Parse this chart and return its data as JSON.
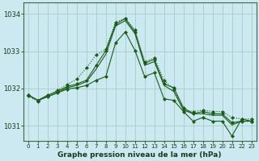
{
  "title": "Graphe pression niveau de la mer (hPa)",
  "bg_color": "#cce8f0",
  "grid_color": "#99ccbb",
  "line_color": "#1a5c1a",
  "xlim": [
    -0.5,
    23.5
  ],
  "ylim": [
    1030.6,
    1034.3
  ],
  "yticks": [
    1031,
    1032,
    1033,
    1034
  ],
  "xticks": [
    0,
    1,
    2,
    3,
    4,
    5,
    6,
    7,
    8,
    9,
    10,
    11,
    12,
    13,
    14,
    15,
    16,
    17,
    18,
    19,
    20,
    21,
    22,
    23
  ],
  "series": [
    {
      "x": [
        0,
        1,
        2,
        3,
        4,
        5,
        6,
        7,
        8,
        9,
        10,
        11,
        12,
        13,
        14,
        15,
        16,
        17,
        18,
        19,
        20,
        21,
        22,
        23
      ],
      "y": [
        1031.8,
        1031.65,
        1031.8,
        1031.95,
        1032.1,
        1032.25,
        1032.55,
        1032.9,
        1033.05,
        1033.78,
        1033.88,
        1033.58,
        1032.72,
        1032.82,
        1032.22,
        1031.98,
        1031.42,
        1031.38,
        1031.42,
        1031.38,
        1031.38,
        1031.22,
        1031.18,
        1031.18
      ],
      "linestyle": "dotted",
      "marker": true
    },
    {
      "x": [
        0,
        1,
        2,
        3,
        4,
        5,
        6,
        7,
        8,
        9,
        10,
        11,
        12,
        13,
        14,
        15,
        16,
        17,
        18,
        19,
        20,
        21,
        22,
        23
      ],
      "y": [
        1031.82,
        1031.68,
        1031.82,
        1031.92,
        1032.05,
        1032.12,
        1032.22,
        1032.62,
        1033.02,
        1033.72,
        1033.88,
        1033.52,
        1032.68,
        1032.78,
        1032.12,
        1032.02,
        1031.48,
        1031.32,
        1031.38,
        1031.32,
        1031.32,
        1031.08,
        1031.12,
        1031.12
      ],
      "linestyle": "solid",
      "marker": true
    },
    {
      "x": [
        0,
        1,
        2,
        3,
        4,
        5,
        6,
        7,
        8,
        9,
        10,
        11,
        12,
        13,
        14,
        15,
        16,
        17,
        18,
        19,
        20,
        21,
        22,
        23
      ],
      "y": [
        1031.82,
        1031.68,
        1031.78,
        1031.88,
        1032.02,
        1032.08,
        1032.18,
        1032.52,
        1032.92,
        1033.68,
        1033.82,
        1033.48,
        1032.62,
        1032.72,
        1032.08,
        1031.92,
        1031.42,
        1031.32,
        1031.32,
        1031.28,
        1031.28,
        1031.02,
        1031.12,
        1031.12
      ],
      "linestyle": "solid",
      "marker": false
    },
    {
      "x": [
        0,
        1,
        2,
        3,
        4,
        5,
        6,
        7,
        8,
        9,
        10,
        11,
        12,
        13,
        14,
        15,
        16,
        17,
        18,
        19,
        20,
        21,
        22,
        23
      ],
      "y": [
        1031.82,
        1031.68,
        1031.78,
        1031.88,
        1031.98,
        1032.02,
        1032.08,
        1032.22,
        1032.32,
        1033.22,
        1033.52,
        1033.02,
        1032.32,
        1032.42,
        1031.72,
        1031.68,
        1031.38,
        1031.12,
        1031.22,
        1031.12,
        1031.12,
        1030.72,
        1031.18,
        1031.12
      ],
      "linestyle": "solid",
      "marker": true
    }
  ]
}
